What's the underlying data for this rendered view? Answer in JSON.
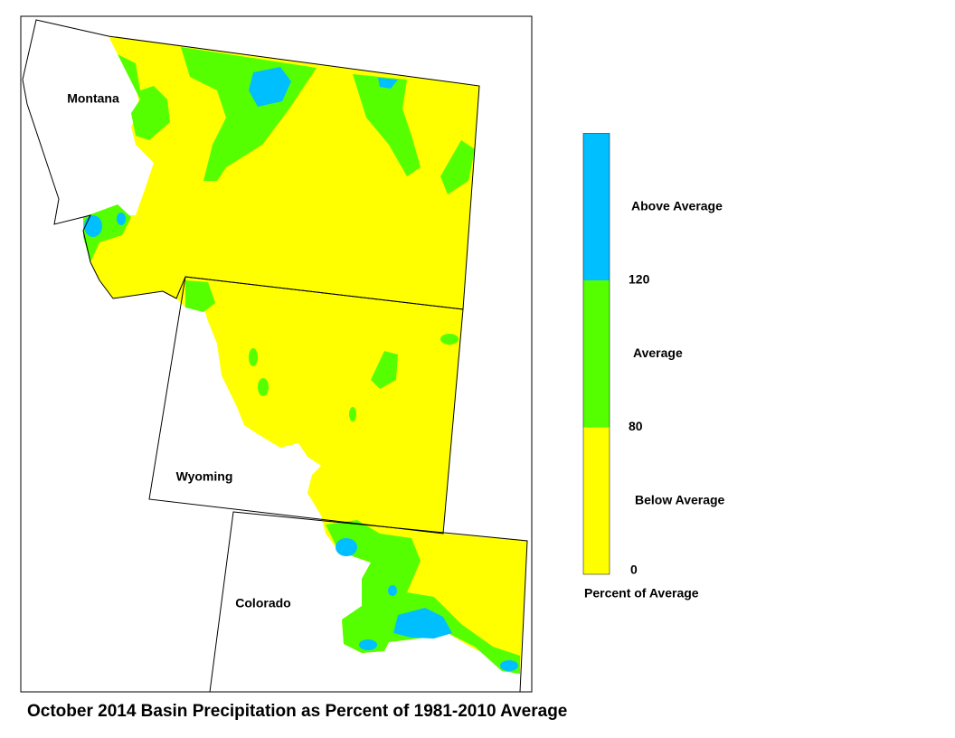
{
  "map": {
    "title": "October 2014 Basin Precipitation as Percent of 1981-2010 Average",
    "state_labels": [
      "Montana",
      "Wyoming",
      "Colorado"
    ]
  },
  "legend": {
    "title": "Percent of Average",
    "classes": [
      {
        "label": "Below Average",
        "color": "#ffff00"
      },
      {
        "label": "Average",
        "color": "#55ff00"
      },
      {
        "label": "Above Average",
        "color": "#00bfff"
      }
    ],
    "ticks": [
      0,
      80,
      120
    ]
  }
}
